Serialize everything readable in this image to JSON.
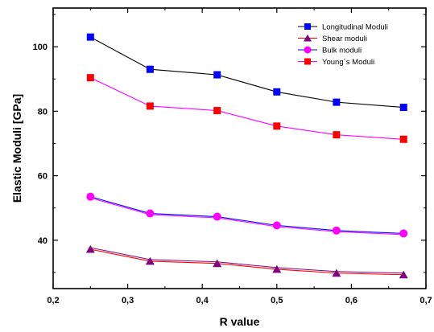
{
  "chart_data": {
    "type": "line",
    "title": "",
    "xlabel": "R value",
    "ylabel": "Elastic Moduli [GPa]",
    "xlim": [
      0.2,
      0.7
    ],
    "ylim": [
      25,
      112
    ],
    "x_ticks": [
      0.2,
      0.3,
      0.4,
      0.5,
      0.6,
      0.7
    ],
    "x_tick_labels": [
      "0,2",
      "0,3",
      "0,4",
      "0,5",
      "0,6",
      "0,7"
    ],
    "y_ticks": [
      40,
      60,
      80,
      100
    ],
    "y_tick_labels": [
      "40",
      "60",
      "80",
      "100"
    ],
    "grid": false,
    "legend_position": "top-right",
    "x": [
      0.25,
      0.33,
      0.42,
      0.5,
      0.58,
      0.67
    ],
    "series": [
      {
        "name": "Longitudinal Moduli",
        "values": [
          103,
          93,
          91.3,
          86,
          82.8,
          81.2
        ],
        "color": "#0000ff",
        "line_color": "#000000",
        "marker": "square"
      },
      {
        "name": "Shear moduli",
        "values": [
          37.2,
          33.5,
          32.8,
          31,
          29.8,
          29.3
        ],
        "color": "#800080",
        "line_color": "#ff0000",
        "marker": "triangle"
      },
      {
        "name": "Bulk moduli",
        "values": [
          53.5,
          48.3,
          47.3,
          44.6,
          43,
          42.1
        ],
        "color": "#ff00ff",
        "line_color": "#0000ff",
        "marker": "circle"
      },
      {
        "name": "Young´s Moduli",
        "values": [
          90.4,
          81.6,
          80.2,
          75.4,
          72.7,
          71.3
        ],
        "color": "#ff0000",
        "line_color": "#ff00ff",
        "marker": "square"
      }
    ]
  }
}
